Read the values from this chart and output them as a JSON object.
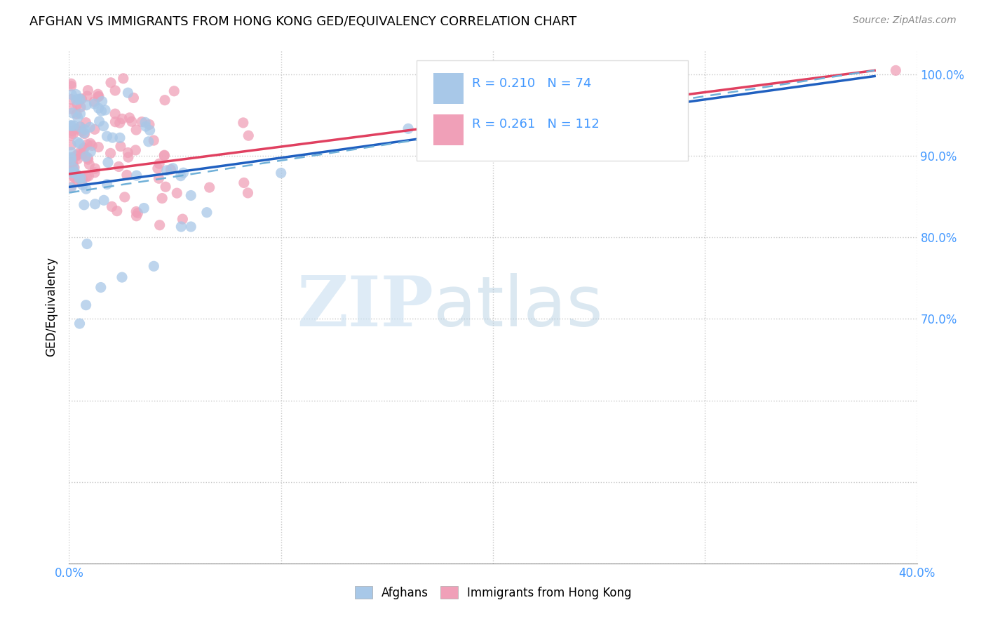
{
  "title": "AFGHAN VS IMMIGRANTS FROM HONG KONG GED/EQUIVALENCY CORRELATION CHART",
  "source": "Source: ZipAtlas.com",
  "ylabel": "GED/Equivalency",
  "xlim": [
    0.0,
    0.4
  ],
  "ylim": [
    0.4,
    1.03
  ],
  "x_ticks": [
    0.0,
    0.1,
    0.2,
    0.3,
    0.4
  ],
  "x_tick_labels": [
    "0.0%",
    "",
    "",
    "",
    "40.0%"
  ],
  "y_ticks": [
    0.4,
    0.5,
    0.6,
    0.7,
    0.8,
    0.9,
    1.0
  ],
  "y_tick_labels": [
    "",
    "",
    "",
    "70.0%",
    "80.0%",
    "90.0%",
    "100.0%"
  ],
  "afghan_color": "#a8c8e8",
  "hk_color": "#f0a0b8",
  "afghan_line_color": "#2060c0",
  "hk_line_color": "#e04060",
  "dashed_line_color": "#70b0d8",
  "R_afghan": 0.21,
  "N_afghan": 74,
  "R_hk": 0.261,
  "N_hk": 112,
  "watermark_zip": "ZIP",
  "watermark_atlas": "atlas",
  "background_color": "#ffffff",
  "grid_color": "#c8c8c8",
  "legend_label_afghan": "Afghans",
  "legend_label_hk": "Immigrants from Hong Kong",
  "tick_color": "#4499ff",
  "title_fontsize": 13,
  "source_fontsize": 10
}
